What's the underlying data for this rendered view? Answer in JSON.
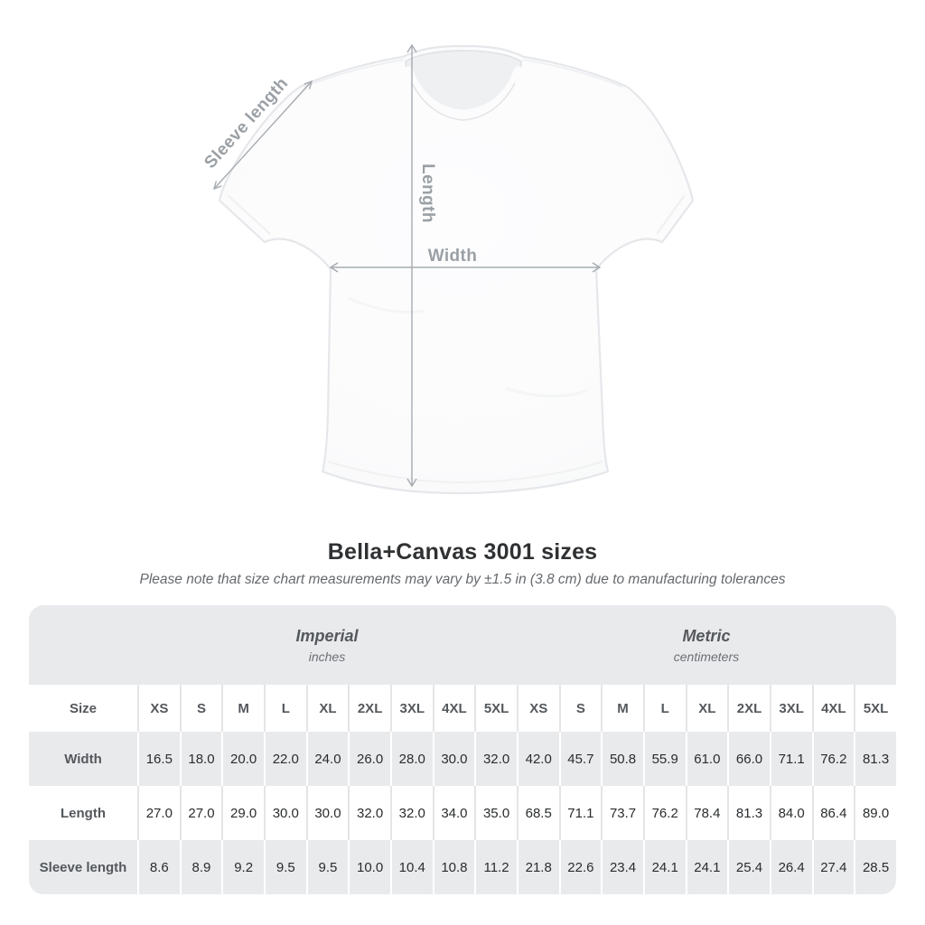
{
  "title": "Bella+Canvas 3001 sizes",
  "subtitle": "Please note that size chart measurements may vary by ±1.5 in (3.8 cm) due to manufacturing tolerances",
  "diagram": {
    "labels": {
      "sleeve": "Sleeve length",
      "length": "Length",
      "width": "Width"
    }
  },
  "table": {
    "size_header": "Size",
    "groups": [
      {
        "label": "Imperial",
        "sublabel": "inches"
      },
      {
        "label": "Metric",
        "sublabel": "centimeters"
      }
    ],
    "sizes": [
      "XS",
      "S",
      "M",
      "L",
      "XL",
      "2XL",
      "3XL",
      "4XL",
      "5XL"
    ],
    "rows": [
      {
        "label": "Width",
        "imperial": [
          "16.5",
          "18.0",
          "20.0",
          "22.0",
          "24.0",
          "26.0",
          "28.0",
          "30.0",
          "32.0"
        ],
        "metric": [
          "42.0",
          "45.7",
          "50.8",
          "55.9",
          "61.0",
          "66.0",
          "71.1",
          "76.2",
          "81.3"
        ]
      },
      {
        "label": "Length",
        "imperial": [
          "27.0",
          "27.0",
          "29.0",
          "30.0",
          "30.0",
          "32.0",
          "32.0",
          "34.0",
          "35.0"
        ],
        "metric": [
          "68.5",
          "71.1",
          "73.7",
          "76.2",
          "78.4",
          "81.3",
          "84.0",
          "86.4",
          "89.0"
        ]
      },
      {
        "label": "Sleeve length",
        "imperial": [
          "8.6",
          "8.9",
          "9.2",
          "9.5",
          "9.5",
          "10.0",
          "10.4",
          "10.8",
          "11.2"
        ],
        "metric": [
          "21.8",
          "22.6",
          "23.4",
          "24.1",
          "24.1",
          "25.4",
          "26.4",
          "27.4",
          "28.5"
        ]
      }
    ]
  },
  "colors": {
    "row_alt": "#e9eaec",
    "sep_light": "#e4e5e7",
    "head_text": "#54585c",
    "value_text": "#2a2c2e",
    "title_text": "#2f3133",
    "subtitle_text": "#66696d",
    "diagram_line": "#a6abb0",
    "diagram_label": "#9aa0a5"
  },
  "chart_data": {
    "type": "table",
    "title": "Bella+Canvas 3001 sizes",
    "note": "Measurements may vary by ±1.5 in (3.8 cm) due to manufacturing tolerances",
    "unit_groups": [
      "Imperial (inches)",
      "Metric (centimeters)"
    ],
    "sizes": [
      "XS",
      "S",
      "M",
      "L",
      "XL",
      "2XL",
      "3XL",
      "4XL",
      "5XL"
    ],
    "width_in": [
      16.5,
      18.0,
      20.0,
      22.0,
      24.0,
      26.0,
      28.0,
      30.0,
      32.0
    ],
    "width_cm": [
      42.0,
      45.7,
      50.8,
      55.9,
      61.0,
      66.0,
      71.1,
      76.2,
      81.3
    ],
    "length_in": [
      27.0,
      27.0,
      29.0,
      30.0,
      30.0,
      32.0,
      32.0,
      34.0,
      35.0
    ],
    "length_cm": [
      68.5,
      71.1,
      73.7,
      76.2,
      78.4,
      81.3,
      84.0,
      86.4,
      89.0
    ],
    "sleeve_in": [
      8.6,
      8.9,
      9.2,
      9.5,
      9.5,
      10.0,
      10.4,
      10.8,
      11.2
    ],
    "sleeve_cm": [
      21.8,
      22.6,
      23.4,
      24.1,
      24.1,
      25.4,
      26.4,
      27.4,
      28.5
    ]
  }
}
